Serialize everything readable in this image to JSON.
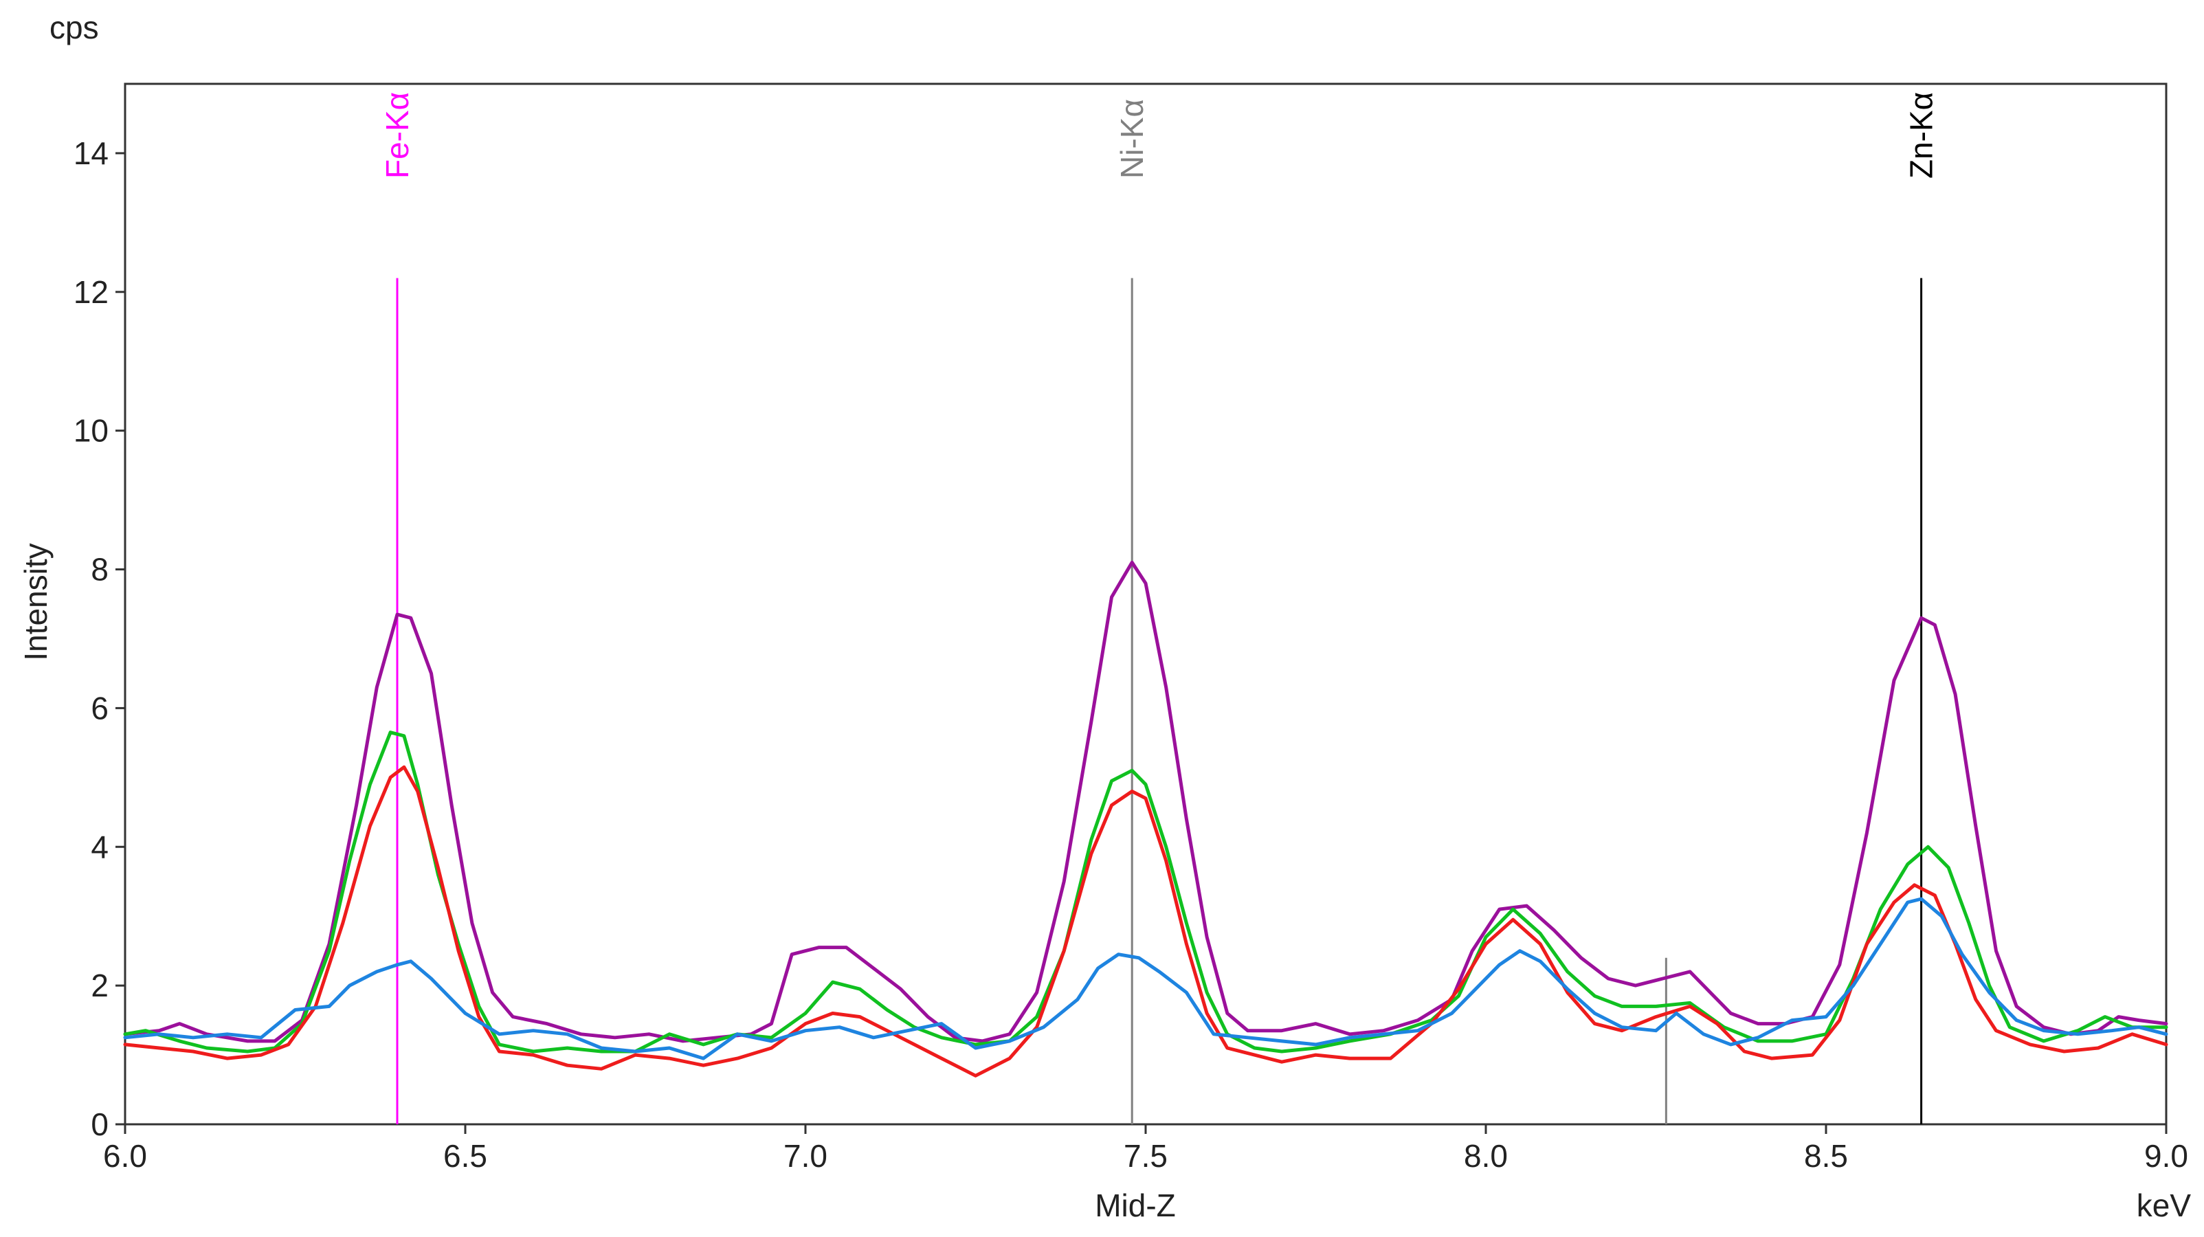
{
  "chart_data": {
    "type": "line",
    "y_unit_label": "cps",
    "ylabel": "Intensity",
    "xlabel": "Mid-Z",
    "x_unit_label": "keV",
    "xlim": [
      6.0,
      9.0
    ],
    "ylim": [
      0,
      15
    ],
    "x_ticks": [
      "6.0",
      "6.5",
      "7.0",
      "7.5",
      "8.0",
      "8.5",
      "9.0"
    ],
    "x_tick_values": [
      6.0,
      6.5,
      7.0,
      7.5,
      8.0,
      8.5,
      9.0
    ],
    "y_ticks": [
      "0",
      "2",
      "4",
      "6",
      "8",
      "10",
      "12",
      "14"
    ],
    "y_tick_values": [
      0,
      2,
      4,
      6,
      8,
      10,
      12,
      14
    ],
    "grid": false,
    "markers": [
      {
        "label": "Fe-Kα",
        "x": 6.4,
        "color": "#ff00ff"
      },
      {
        "label": "Ni-Kα",
        "x": 7.48,
        "color": "#808080"
      },
      {
        "label": "Zn-Kα",
        "x": 8.64,
        "color": "#000000"
      }
    ],
    "extra_lines": [
      {
        "x": 8.265,
        "y_top": 2.4,
        "color": "#808080"
      }
    ],
    "series": [
      {
        "color": "#9b109b",
        "points": [
          [
            6.0,
            1.3
          ],
          [
            6.05,
            1.35
          ],
          [
            6.08,
            1.45
          ],
          [
            6.12,
            1.3
          ],
          [
            6.18,
            1.2
          ],
          [
            6.22,
            1.2
          ],
          [
            6.26,
            1.5
          ],
          [
            6.3,
            2.6
          ],
          [
            6.34,
            4.6
          ],
          [
            6.37,
            6.3
          ],
          [
            6.4,
            7.35
          ],
          [
            6.42,
            7.3
          ],
          [
            6.45,
            6.5
          ],
          [
            6.48,
            4.6
          ],
          [
            6.51,
            2.9
          ],
          [
            6.54,
            1.9
          ],
          [
            6.57,
            1.55
          ],
          [
            6.62,
            1.45
          ],
          [
            6.67,
            1.3
          ],
          [
            6.72,
            1.25
          ],
          [
            6.77,
            1.3
          ],
          [
            6.82,
            1.2
          ],
          [
            6.87,
            1.25
          ],
          [
            6.92,
            1.3
          ],
          [
            6.95,
            1.45
          ],
          [
            6.98,
            2.45
          ],
          [
            7.02,
            2.55
          ],
          [
            7.06,
            2.55
          ],
          [
            7.1,
            2.25
          ],
          [
            7.14,
            1.95
          ],
          [
            7.18,
            1.55
          ],
          [
            7.22,
            1.25
          ],
          [
            7.26,
            1.2
          ],
          [
            7.3,
            1.3
          ],
          [
            7.34,
            1.9
          ],
          [
            7.38,
            3.5
          ],
          [
            7.42,
            5.8
          ],
          [
            7.45,
            7.6
          ],
          [
            7.48,
            8.1
          ],
          [
            7.5,
            7.8
          ],
          [
            7.53,
            6.3
          ],
          [
            7.56,
            4.4
          ],
          [
            7.59,
            2.7
          ],
          [
            7.62,
            1.6
          ],
          [
            7.65,
            1.35
          ],
          [
            7.7,
            1.35
          ],
          [
            7.75,
            1.45
          ],
          [
            7.8,
            1.3
          ],
          [
            7.85,
            1.35
          ],
          [
            7.9,
            1.5
          ],
          [
            7.95,
            1.8
          ],
          [
            7.98,
            2.5
          ],
          [
            8.02,
            3.1
          ],
          [
            8.06,
            3.15
          ],
          [
            8.1,
            2.8
          ],
          [
            8.14,
            2.4
          ],
          [
            8.18,
            2.1
          ],
          [
            8.22,
            2.0
          ],
          [
            8.26,
            2.1
          ],
          [
            8.3,
            2.2
          ],
          [
            8.33,
            1.9
          ],
          [
            8.36,
            1.6
          ],
          [
            8.4,
            1.45
          ],
          [
            8.44,
            1.45
          ],
          [
            8.48,
            1.55
          ],
          [
            8.52,
            2.3
          ],
          [
            8.56,
            4.2
          ],
          [
            8.6,
            6.4
          ],
          [
            8.64,
            7.3
          ],
          [
            8.66,
            7.2
          ],
          [
            8.69,
            6.2
          ],
          [
            8.72,
            4.3
          ],
          [
            8.75,
            2.5
          ],
          [
            8.78,
            1.7
          ],
          [
            8.82,
            1.4
          ],
          [
            8.86,
            1.3
          ],
          [
            8.9,
            1.35
          ],
          [
            8.93,
            1.55
          ],
          [
            8.96,
            1.5
          ],
          [
            9.0,
            1.45
          ]
        ]
      },
      {
        "color": "#10c020",
        "points": [
          [
            6.0,
            1.3
          ],
          [
            6.03,
            1.35
          ],
          [
            6.08,
            1.2
          ],
          [
            6.12,
            1.1
          ],
          [
            6.18,
            1.05
          ],
          [
            6.22,
            1.1
          ],
          [
            6.26,
            1.45
          ],
          [
            6.3,
            2.5
          ],
          [
            6.33,
            3.8
          ],
          [
            6.36,
            4.9
          ],
          [
            6.39,
            5.65
          ],
          [
            6.41,
            5.6
          ],
          [
            6.43,
            4.9
          ],
          [
            6.46,
            3.6
          ],
          [
            6.49,
            2.6
          ],
          [
            6.52,
            1.7
          ],
          [
            6.55,
            1.15
          ],
          [
            6.6,
            1.05
          ],
          [
            6.65,
            1.1
          ],
          [
            6.7,
            1.05
          ],
          [
            6.75,
            1.05
          ],
          [
            6.8,
            1.3
          ],
          [
            6.85,
            1.15
          ],
          [
            6.9,
            1.3
          ],
          [
            6.95,
            1.25
          ],
          [
            7.0,
            1.6
          ],
          [
            7.04,
            2.05
          ],
          [
            7.08,
            1.95
          ],
          [
            7.12,
            1.65
          ],
          [
            7.16,
            1.4
          ],
          [
            7.2,
            1.25
          ],
          [
            7.25,
            1.15
          ],
          [
            7.3,
            1.2
          ],
          [
            7.34,
            1.55
          ],
          [
            7.38,
            2.5
          ],
          [
            7.42,
            4.1
          ],
          [
            7.45,
            4.95
          ],
          [
            7.48,
            5.1
          ],
          [
            7.5,
            4.9
          ],
          [
            7.53,
            4.0
          ],
          [
            7.56,
            2.9
          ],
          [
            7.59,
            1.9
          ],
          [
            7.62,
            1.3
          ],
          [
            7.66,
            1.1
          ],
          [
            7.7,
            1.05
          ],
          [
            7.75,
            1.1
          ],
          [
            7.8,
            1.2
          ],
          [
            7.86,
            1.3
          ],
          [
            7.92,
            1.5
          ],
          [
            7.96,
            1.85
          ],
          [
            8.0,
            2.7
          ],
          [
            8.04,
            3.1
          ],
          [
            8.08,
            2.75
          ],
          [
            8.12,
            2.2
          ],
          [
            8.16,
            1.85
          ],
          [
            8.2,
            1.7
          ],
          [
            8.25,
            1.7
          ],
          [
            8.3,
            1.75
          ],
          [
            8.35,
            1.4
          ],
          [
            8.4,
            1.2
          ],
          [
            8.45,
            1.2
          ],
          [
            8.5,
            1.3
          ],
          [
            8.54,
            2.1
          ],
          [
            8.58,
            3.1
          ],
          [
            8.62,
            3.75
          ],
          [
            8.65,
            4.0
          ],
          [
            8.68,
            3.7
          ],
          [
            8.71,
            2.9
          ],
          [
            8.74,
            2.0
          ],
          [
            8.77,
            1.4
          ],
          [
            8.82,
            1.2
          ],
          [
            8.87,
            1.35
          ],
          [
            8.91,
            1.55
          ],
          [
            8.95,
            1.4
          ],
          [
            9.0,
            1.4
          ]
        ]
      },
      {
        "color": "#ee1c1c",
        "points": [
          [
            6.0,
            1.15
          ],
          [
            6.05,
            1.1
          ],
          [
            6.1,
            1.05
          ],
          [
            6.15,
            0.95
          ],
          [
            6.2,
            1.0
          ],
          [
            6.24,
            1.15
          ],
          [
            6.28,
            1.7
          ],
          [
            6.32,
            2.9
          ],
          [
            6.36,
            4.3
          ],
          [
            6.39,
            5.0
          ],
          [
            6.41,
            5.15
          ],
          [
            6.43,
            4.8
          ],
          [
            6.46,
            3.7
          ],
          [
            6.49,
            2.5
          ],
          [
            6.52,
            1.55
          ],
          [
            6.55,
            1.05
          ],
          [
            6.6,
            1.0
          ],
          [
            6.65,
            0.85
          ],
          [
            6.7,
            0.8
          ],
          [
            6.75,
            1.0
          ],
          [
            6.8,
            0.95
          ],
          [
            6.85,
            0.85
          ],
          [
            6.9,
            0.95
          ],
          [
            6.95,
            1.1
          ],
          [
            7.0,
            1.45
          ],
          [
            7.04,
            1.6
          ],
          [
            7.08,
            1.55
          ],
          [
            7.12,
            1.35
          ],
          [
            7.16,
            1.15
          ],
          [
            7.2,
            0.95
          ],
          [
            7.25,
            0.7
          ],
          [
            7.3,
            0.95
          ],
          [
            7.34,
            1.4
          ],
          [
            7.38,
            2.5
          ],
          [
            7.42,
            3.9
          ],
          [
            7.45,
            4.6
          ],
          [
            7.48,
            4.8
          ],
          [
            7.5,
            4.7
          ],
          [
            7.53,
            3.8
          ],
          [
            7.56,
            2.6
          ],
          [
            7.59,
            1.6
          ],
          [
            7.62,
            1.1
          ],
          [
            7.66,
            1.0
          ],
          [
            7.7,
            0.9
          ],
          [
            7.75,
            1.0
          ],
          [
            7.8,
            0.95
          ],
          [
            7.86,
            0.95
          ],
          [
            7.92,
            1.45
          ],
          [
            7.96,
            1.95
          ],
          [
            8.0,
            2.6
          ],
          [
            8.04,
            2.95
          ],
          [
            8.08,
            2.6
          ],
          [
            8.12,
            1.9
          ],
          [
            8.16,
            1.45
          ],
          [
            8.2,
            1.35
          ],
          [
            8.25,
            1.55
          ],
          [
            8.3,
            1.7
          ],
          [
            8.34,
            1.45
          ],
          [
            8.38,
            1.05
          ],
          [
            8.42,
            0.95
          ],
          [
            8.48,
            1.0
          ],
          [
            8.52,
            1.5
          ],
          [
            8.56,
            2.6
          ],
          [
            8.6,
            3.2
          ],
          [
            8.63,
            3.45
          ],
          [
            8.66,
            3.3
          ],
          [
            8.69,
            2.6
          ],
          [
            8.72,
            1.8
          ],
          [
            8.75,
            1.35
          ],
          [
            8.8,
            1.15
          ],
          [
            8.85,
            1.05
          ],
          [
            8.9,
            1.1
          ],
          [
            8.95,
            1.3
          ],
          [
            9.0,
            1.15
          ]
        ]
      },
      {
        "color": "#1e84e0",
        "points": [
          [
            6.0,
            1.25
          ],
          [
            6.05,
            1.3
          ],
          [
            6.1,
            1.25
          ],
          [
            6.15,
            1.3
          ],
          [
            6.2,
            1.25
          ],
          [
            6.25,
            1.65
          ],
          [
            6.3,
            1.7
          ],
          [
            6.33,
            2.0
          ],
          [
            6.37,
            2.2
          ],
          [
            6.4,
            2.3
          ],
          [
            6.42,
            2.35
          ],
          [
            6.45,
            2.1
          ],
          [
            6.5,
            1.6
          ],
          [
            6.55,
            1.3
          ],
          [
            6.6,
            1.35
          ],
          [
            6.65,
            1.3
          ],
          [
            6.7,
            1.1
          ],
          [
            6.75,
            1.05
          ],
          [
            6.8,
            1.1
          ],
          [
            6.85,
            0.95
          ],
          [
            6.9,
            1.3
          ],
          [
            6.95,
            1.2
          ],
          [
            7.0,
            1.35
          ],
          [
            7.05,
            1.4
          ],
          [
            7.1,
            1.25
          ],
          [
            7.15,
            1.35
          ],
          [
            7.2,
            1.45
          ],
          [
            7.25,
            1.1
          ],
          [
            7.3,
            1.2
          ],
          [
            7.35,
            1.4
          ],
          [
            7.4,
            1.8
          ],
          [
            7.43,
            2.25
          ],
          [
            7.46,
            2.45
          ],
          [
            7.49,
            2.4
          ],
          [
            7.52,
            2.2
          ],
          [
            7.56,
            1.9
          ],
          [
            7.6,
            1.3
          ],
          [
            7.65,
            1.25
          ],
          [
            7.7,
            1.2
          ],
          [
            7.75,
            1.15
          ],
          [
            7.8,
            1.25
          ],
          [
            7.85,
            1.3
          ],
          [
            7.9,
            1.35
          ],
          [
            7.95,
            1.6
          ],
          [
            7.98,
            1.9
          ],
          [
            8.02,
            2.3
          ],
          [
            8.05,
            2.5
          ],
          [
            8.08,
            2.35
          ],
          [
            8.12,
            1.95
          ],
          [
            8.16,
            1.6
          ],
          [
            8.2,
            1.4
          ],
          [
            8.25,
            1.35
          ],
          [
            8.28,
            1.6
          ],
          [
            8.32,
            1.3
          ],
          [
            8.36,
            1.15
          ],
          [
            8.4,
            1.25
          ],
          [
            8.45,
            1.5
          ],
          [
            8.5,
            1.55
          ],
          [
            8.54,
            2.0
          ],
          [
            8.58,
            2.6
          ],
          [
            8.62,
            3.2
          ],
          [
            8.64,
            3.25
          ],
          [
            8.67,
            3.0
          ],
          [
            8.7,
            2.45
          ],
          [
            8.74,
            1.9
          ],
          [
            8.78,
            1.5
          ],
          [
            8.82,
            1.35
          ],
          [
            8.87,
            1.3
          ],
          [
            8.92,
            1.35
          ],
          [
            8.96,
            1.4
          ],
          [
            9.0,
            1.3
          ]
        ]
      }
    ]
  }
}
